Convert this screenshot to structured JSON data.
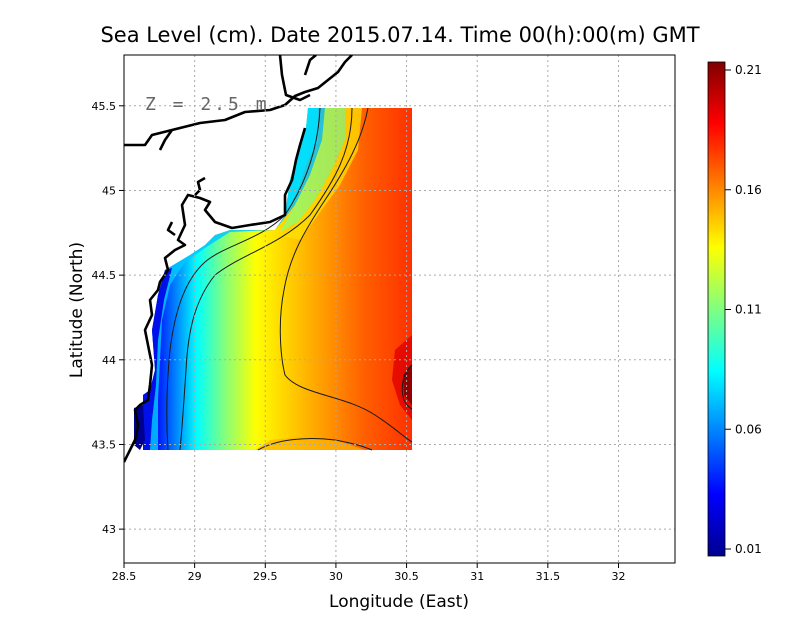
{
  "chart_data": {
    "type": "heatmap",
    "title": "Sea Level (cm). Date 2015.07.14. Time 00(h):00(m) GMT",
    "xlabel": "Longitude (East)",
    "ylabel": "Latitude (North)",
    "xlim": [
      28.5,
      32.4
    ],
    "ylim": [
      42.8,
      45.8
    ],
    "x_ticks": [
      "28.5",
      "29",
      "29.5",
      "30",
      "30.5",
      "31",
      "31.5",
      "32"
    ],
    "y_ticks": [
      "43",
      "43.5",
      "44",
      "44.5",
      "45",
      "45.5"
    ],
    "grid": true,
    "annotation": "Z = 2.5 m",
    "field_extent": {
      "lon": [
        28.65,
        30.55
      ],
      "lat": [
        43.5,
        45.5
      ]
    },
    "colorbar": {
      "min": 0.01,
      "max": 0.21,
      "tick_labels": [
        "0.21",
        "0.16",
        "0.11",
        "0.06",
        "0.01"
      ],
      "colormap": [
        "#00008f",
        "#0000ff",
        "#0080ff",
        "#00ffff",
        "#80ff80",
        "#ffff00",
        "#ff8000",
        "#ff0000",
        "#800000"
      ]
    },
    "sample_values": [
      {
        "lon": 28.7,
        "lat": 43.6,
        "value": 0.02
      },
      {
        "lon": 28.85,
        "lat": 44.0,
        "value": 0.07
      },
      {
        "lon": 29.2,
        "lat": 44.0,
        "value": 0.12
      },
      {
        "lon": 29.6,
        "lat": 44.0,
        "value": 0.15
      },
      {
        "lon": 30.2,
        "lat": 44.0,
        "value": 0.18
      },
      {
        "lon": 30.5,
        "lat": 43.85,
        "value": 0.21
      },
      {
        "lon": 29.9,
        "lat": 45.3,
        "value": 0.09
      },
      {
        "lon": 30.3,
        "lat": 45.3,
        "value": 0.17
      }
    ]
  },
  "colors": {
    "frame": "#000000",
    "grid": "#aaaaaa",
    "coast": "#000000",
    "contour": "#1a1a1a"
  }
}
